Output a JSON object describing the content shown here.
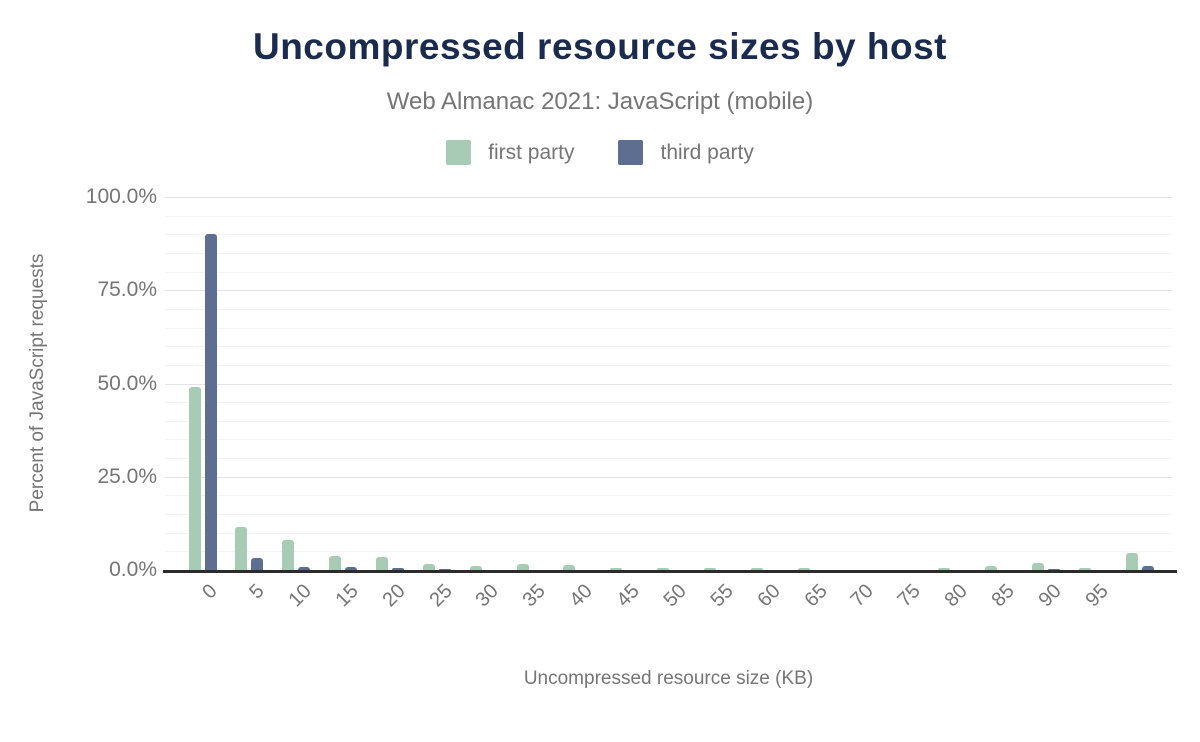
{
  "chart_data": {
    "type": "bar",
    "title": "Uncompressed resource sizes by host",
    "subtitle": "Web Almanac 2021: JavaScript (mobile)",
    "xlabel": "Uncompressed resource size (KB)",
    "ylabel": "Percent of JavaScript requests",
    "categories": [
      "0",
      "5",
      "10",
      "15",
      "20",
      "25",
      "30",
      "35",
      "40",
      "45",
      "50",
      "55",
      "60",
      "65",
      "70",
      "75",
      "80",
      "85",
      "90",
      "95",
      ""
    ],
    "series": [
      {
        "name": "first party",
        "color": "#a8cbb6",
        "values": [
          49.0,
          11.4,
          8.0,
          3.7,
          3.6,
          1.5,
          1.1,
          1.5,
          1.3,
          0.6,
          0.5,
          0.6,
          0.6,
          0.5,
          0.1,
          0.1,
          0.5,
          1.0,
          1.9,
          0.5,
          4.5
        ]
      },
      {
        "name": "third party",
        "color": "#5d6e90",
        "values": [
          90.0,
          3.1,
          0.8,
          0.8,
          0.6,
          0.2,
          0.1,
          0.1,
          0.1,
          0.1,
          0.1,
          0.1,
          0.1,
          0.1,
          0.05,
          0.05,
          0.1,
          0.1,
          0.2,
          0.1,
          1.0
        ]
      }
    ],
    "ylim": [
      0,
      100
    ],
    "yticks": [
      {
        "value": 0,
        "label": "0.0%"
      },
      {
        "value": 25,
        "label": "25.0%"
      },
      {
        "value": 50,
        "label": "50.0%"
      },
      {
        "value": 75,
        "label": "75.0%"
      },
      {
        "value": 100,
        "label": "100.0%"
      }
    ],
    "grid": {
      "minor_step_pct": 5,
      "major_step_pct": 25,
      "grid_on": true
    },
    "legend_position": "top"
  },
  "colors": {
    "title_text": "#1b2b4d",
    "muted_text": "#757575",
    "axis_line": "#2b2b2b",
    "grid_major": "#e3e3e3",
    "grid_minor": "#f4f4f4",
    "background": "#ffffff"
  }
}
